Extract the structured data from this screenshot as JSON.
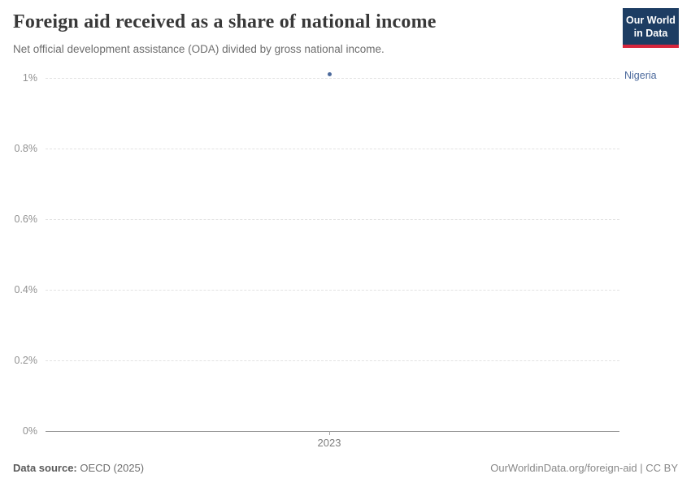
{
  "header": {
    "title": "Foreign aid received as a share of national income",
    "subtitle": "Net official development assistance (ODA) divided by gross national income.",
    "logo": {
      "line1": "Our World",
      "line2": "in Data"
    }
  },
  "chart_data": {
    "type": "scatter",
    "title": "Foreign aid received as a share of national income",
    "subtitle": "Net official development assistance (ODA) divided by gross national income.",
    "series": [
      {
        "name": "Nigeria",
        "color": "#4c6a9c",
        "points": [
          {
            "x": 2023,
            "y_percent": 1.01
          }
        ]
      }
    ],
    "xlabel": "",
    "ylabel": "",
    "xticks": [
      "2023"
    ],
    "ytick_labels": [
      "1%",
      "0.8%",
      "0.6%",
      "0.4%",
      "0.2%",
      "0%"
    ],
    "ytick_values": [
      1,
      0.8,
      0.6,
      0.4,
      0.2,
      0
    ],
    "ylim": [
      0,
      1.05
    ],
    "grid": "horizontal-dashed",
    "legend_position": "right-of-plot"
  },
  "footer": {
    "source_label": "Data source:",
    "source_value": " OECD (2025)",
    "link": "OurWorldinData.org/foreign-aid | CC BY"
  },
  "colors": {
    "logo_navy": "#1d3d63",
    "logo_red": "#d7263d",
    "entity_blue": "#4c6a9c",
    "grid_gray": "#e2e2e2",
    "axis_gray": "#8e8e8e"
  }
}
